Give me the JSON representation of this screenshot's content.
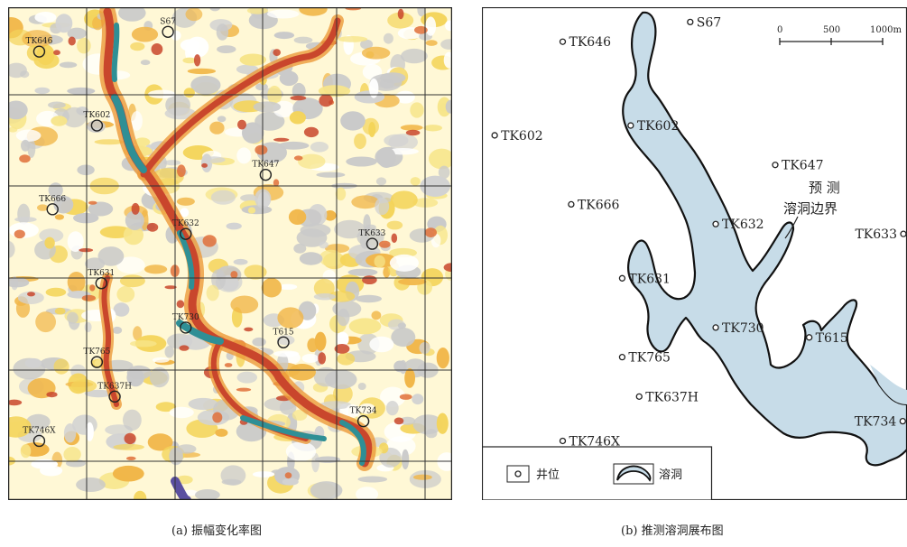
{
  "panel_a": {
    "caption": "(a) 振幅变化率图",
    "wells": [
      {
        "id": "w1",
        "label": "TK646",
        "nx": 0.07,
        "ny": 0.09
      },
      {
        "id": "w2",
        "label": "S67",
        "nx": 0.36,
        "ny": 0.05
      },
      {
        "id": "w3",
        "label": "TK602",
        "nx": 0.2,
        "ny": 0.24
      },
      {
        "id": "w4",
        "label": "TK647",
        "nx": 0.58,
        "ny": 0.34
      },
      {
        "id": "w5",
        "label": "TK666",
        "nx": 0.1,
        "ny": 0.41
      },
      {
        "id": "w6",
        "label": "TK632",
        "nx": 0.4,
        "ny": 0.46
      },
      {
        "id": "w7",
        "label": "TK633",
        "nx": 0.82,
        "ny": 0.48
      },
      {
        "id": "w8",
        "label": "TK631",
        "nx": 0.21,
        "ny": 0.56
      },
      {
        "id": "w9",
        "label": "TK730",
        "nx": 0.4,
        "ny": 0.65
      },
      {
        "id": "w10",
        "label": "TK765",
        "nx": 0.2,
        "ny": 0.72
      },
      {
        "id": "w11",
        "label": "T615",
        "nx": 0.62,
        "ny": 0.68
      },
      {
        "id": "w12",
        "label": "TK637H",
        "nx": 0.24,
        "ny": 0.79
      },
      {
        "id": "w13",
        "label": "TK734",
        "nx": 0.8,
        "ny": 0.84
      },
      {
        "id": "w14",
        "label": "TK746X",
        "nx": 0.07,
        "ny": 0.88
      }
    ]
  },
  "panel_b": {
    "caption": "(b) 推测溶洞展布图",
    "wells": [
      {
        "id": "b1",
        "label": "S67",
        "nx": 0.49,
        "ny": 0.03
      },
      {
        "id": "b2",
        "label": "TK646",
        "nx": 0.19,
        "ny": 0.07
      },
      {
        "id": "b3",
        "label": "TK602",
        "nx": 0.03,
        "ny": 0.26
      },
      {
        "id": "b4",
        "label": "TK602",
        "nx": 0.35,
        "ny": 0.24
      },
      {
        "id": "b5",
        "label": "TK647",
        "nx": 0.69,
        "ny": 0.32
      },
      {
        "id": "b6",
        "label": "TK666",
        "nx": 0.21,
        "ny": 0.4
      },
      {
        "id": "b7",
        "label": "TK632",
        "nx": 0.55,
        "ny": 0.44
      },
      {
        "id": "b8",
        "label": "TK633",
        "nx": 1.0,
        "ny": 0.46
      },
      {
        "id": "b9",
        "label": "TK631",
        "nx": 0.33,
        "ny": 0.55
      },
      {
        "id": "b10",
        "label": "TK730",
        "nx": 0.55,
        "ny": 0.65
      },
      {
        "id": "b11",
        "label": "TK765",
        "nx": 0.33,
        "ny": 0.71
      },
      {
        "id": "b12",
        "label": "T615",
        "nx": 0.77,
        "ny": 0.67
      },
      {
        "id": "b13",
        "label": "TK637H",
        "nx": 0.37,
        "ny": 0.79
      },
      {
        "id": "b14",
        "label": "TK734",
        "nx": 0.99,
        "ny": 0.84
      },
      {
        "id": "b15",
        "label": "TK746X",
        "nx": 0.19,
        "ny": 0.88
      }
    ],
    "annotation": {
      "line1": "预 测",
      "line2": "溶洞边界"
    },
    "scale": {
      "t0": "0",
      "t1": "500",
      "t2": "1000m"
    },
    "legend": {
      "well": "井位",
      "cave": "溶洞"
    }
  },
  "colors": {
    "cave_fill": "#c7dce8",
    "teal": "#2f8f95",
    "red": "#c9462c",
    "orange": "#ec9a3a",
    "yellow": "#f7e58a",
    "gray": "#c7c7c7"
  }
}
